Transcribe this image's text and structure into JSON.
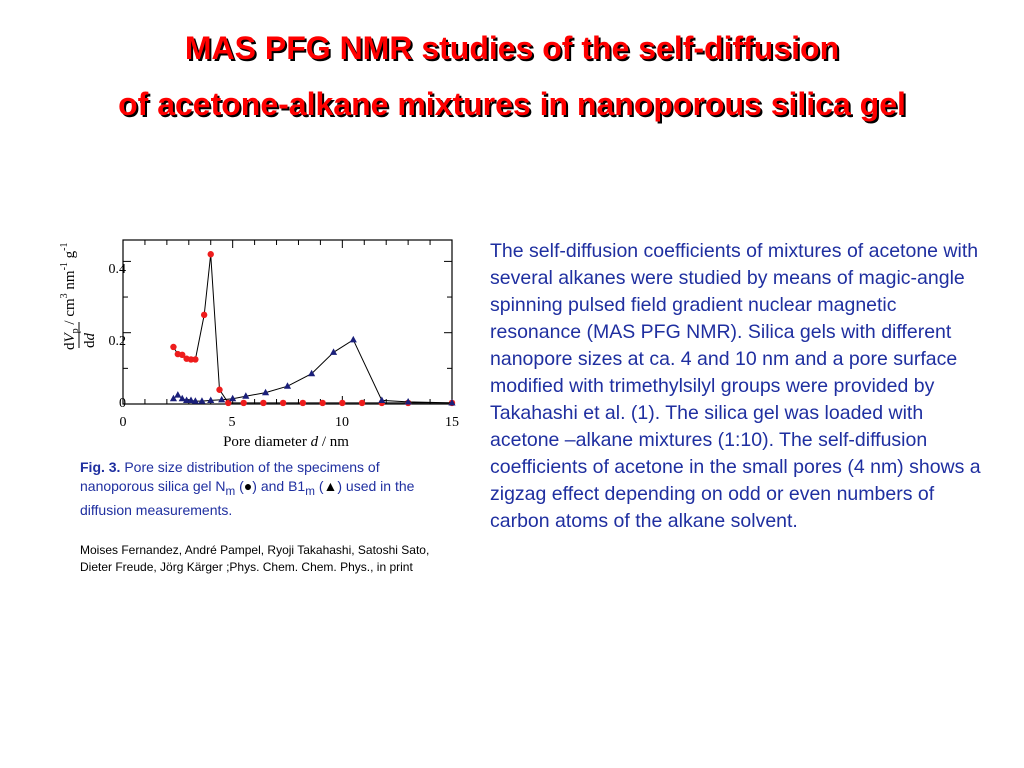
{
  "title": {
    "line1": "MAS PFG NMR studies of the self-diffusion",
    "line2": "of acetone-alkane mixtures in nanoporous silica gel"
  },
  "caption": {
    "fig_label": "Fig. 3.",
    "text_before": "Pore size distribution of the specimens of nanoporous silica gel  N",
    "sub1": "m",
    "text_mid1": " (",
    "circle_symbol": "●",
    "text_mid2": ") and B1",
    "sub2": "m",
    "text_mid3": " (",
    "triangle_symbol": "▲",
    "text_after": ") used in the diffusion measurements."
  },
  "reference": "Moises Fernandez, André Pampel, Ryoji Takahashi, Satoshi Sato, Dieter Freude, Jörg Kärger ;Phys. Chem. Chem. Phys., in print",
  "body_text": "The self-diffusion coefficients of mixtures of acetone with several alkanes were studied by means of magic-angle spinning pulsed field gradient nuclear magnetic resonance (MAS PFG NMR). Silica gels with different nanopore sizes at ca. 4 and 10 nm and a pore surface modified with trimethylsilyl groups were provided by Takahashi et al. (1). The silica gel was loaded with acetone –alkane mixtures (1:10). The self-diffusion coefficients of acetone in the small pores (4 nm) shows a zigzag effect depending on odd or even numbers of carbon atoms of the alkane solvent.",
  "colors": {
    "title": "#ff0000",
    "text_blue": "#1f2fa0",
    "series_nm": "#ee1c1c",
    "series_b1m": "#1a1f7a"
  },
  "chart_data": {
    "type": "line",
    "xlabel": {
      "prefix": "Pore diameter ",
      "var": "d",
      "suffix": " / nm"
    },
    "ylabel": {
      "num_d": "d",
      "num_V": "V",
      "num_sub": "p",
      "den_d": "d",
      "den_var": "d",
      "units_a": " / cm",
      "units_a_sup": "3",
      "units_b": " nm",
      "units_b_sup": "-1",
      "units_c": " g",
      "units_c_sup": "-1"
    },
    "x_ticks": [
      "0",
      "5",
      "10",
      "15"
    ],
    "y_ticks": [
      "0",
      "0.2",
      "0.4"
    ],
    "xlim": [
      0,
      15
    ],
    "ylim": [
      0,
      0.46
    ],
    "grid": false,
    "series": [
      {
        "marker": "circle",
        "color": "#ee1c1c",
        "points": [
          [
            2.3,
            0.16
          ],
          [
            2.5,
            0.14
          ],
          [
            2.7,
            0.138
          ],
          [
            2.9,
            0.127
          ],
          [
            3.1,
            0.125
          ],
          [
            3.3,
            0.125
          ],
          [
            3.7,
            0.25
          ],
          [
            4.0,
            0.42
          ],
          [
            4.4,
            0.04
          ],
          [
            4.8,
            0.003
          ],
          [
            5.5,
            0.003
          ],
          [
            6.4,
            0.003
          ],
          [
            7.3,
            0.003
          ],
          [
            8.2,
            0.003
          ],
          [
            9.1,
            0.003
          ],
          [
            10.0,
            0.003
          ],
          [
            10.9,
            0.003
          ],
          [
            11.8,
            0.003
          ],
          [
            13.0,
            0.003
          ],
          [
            15.0,
            0.003
          ]
        ]
      },
      {
        "marker": "triangle",
        "color": "#1a1f7a",
        "points": [
          [
            2.3,
            0.015
          ],
          [
            2.5,
            0.025
          ],
          [
            2.7,
            0.015
          ],
          [
            2.9,
            0.01
          ],
          [
            3.1,
            0.01
          ],
          [
            3.3,
            0.008
          ],
          [
            3.6,
            0.008
          ],
          [
            4.0,
            0.01
          ],
          [
            4.5,
            0.012
          ],
          [
            5.0,
            0.015
          ],
          [
            5.6,
            0.022
          ],
          [
            6.5,
            0.032
          ],
          [
            7.5,
            0.05
          ],
          [
            8.6,
            0.085
          ],
          [
            9.6,
            0.145
          ],
          [
            10.5,
            0.18
          ],
          [
            11.8,
            0.01
          ],
          [
            13.0,
            0.006
          ],
          [
            15.0,
            0.003
          ]
        ]
      }
    ]
  }
}
